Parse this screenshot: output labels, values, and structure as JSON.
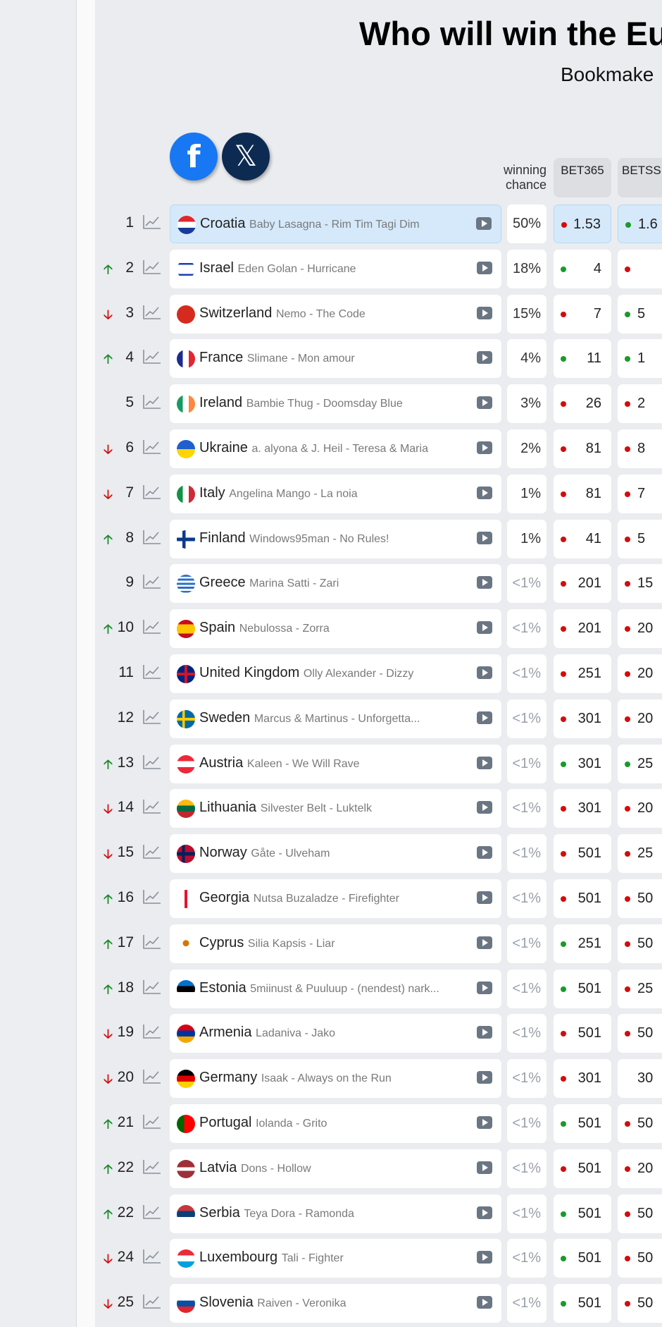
{
  "header": {
    "title": "Who will win the Eu",
    "subtitle": "Bookmake"
  },
  "social": [
    {
      "icon": "facebook-icon",
      "glyph": "f"
    },
    {
      "icon": "x-icon",
      "glyph": "𝕏"
    }
  ],
  "columns": {
    "chance": "winning chance",
    "bookmakers": [
      "BET365",
      "BETSS"
    ]
  },
  "colors": {
    "up": "#1a8a2a",
    "down": "#d01010",
    "odds_up": "#1a9a2a",
    "odds_down": "#d40c0c",
    "highlight": "#d5e9fb"
  },
  "rows": [
    {
      "rank": "1",
      "trend": "",
      "country": "Croatia",
      "artist": "Baby Lasagna - Rim Tim Tagi Dim",
      "flag": "croatia",
      "chance": "50%",
      "odds": [
        {
          "v": "1.53",
          "d": "red"
        },
        {
          "v": "1.6",
          "d": "green"
        }
      ]
    },
    {
      "rank": "2",
      "trend": "up",
      "country": "Israel",
      "artist": "Eden Golan - Hurricane",
      "flag": "israel",
      "chance": "18%",
      "odds": [
        {
          "v": "4",
          "d": "green"
        },
        {
          "v": "",
          "d": "red"
        }
      ]
    },
    {
      "rank": "3",
      "trend": "down",
      "country": "Switzerland",
      "artist": "Nemo - The Code",
      "flag": "switzerland",
      "chance": "15%",
      "odds": [
        {
          "v": "7",
          "d": "red"
        },
        {
          "v": "5",
          "d": "green"
        }
      ]
    },
    {
      "rank": "4",
      "trend": "up",
      "country": "France",
      "artist": "Slimane - Mon amour",
      "flag": "france",
      "chance": "4%",
      "odds": [
        {
          "v": "11",
          "d": "green"
        },
        {
          "v": "1",
          "d": "green"
        }
      ]
    },
    {
      "rank": "5",
      "trend": "",
      "country": "Ireland",
      "artist": "Bambie Thug - Doomsday Blue",
      "flag": "ireland",
      "chance": "3%",
      "odds": [
        {
          "v": "26",
          "d": "red"
        },
        {
          "v": "2",
          "d": "red"
        }
      ]
    },
    {
      "rank": "6",
      "trend": "down",
      "country": "Ukraine",
      "artist": "a. alyona & J. Heil - Teresa & Maria",
      "flag": "ukraine",
      "chance": "2%",
      "odds": [
        {
          "v": "81",
          "d": "red"
        },
        {
          "v": "8",
          "d": "red"
        }
      ]
    },
    {
      "rank": "7",
      "trend": "down",
      "country": "Italy",
      "artist": "Angelina Mango - La noia",
      "flag": "italy",
      "chance": "1%",
      "odds": [
        {
          "v": "81",
          "d": "red"
        },
        {
          "v": "7",
          "d": "red"
        }
      ]
    },
    {
      "rank": "8",
      "trend": "up",
      "country": "Finland",
      "artist": "Windows95man - No Rules!",
      "flag": "finland",
      "chance": "1%",
      "odds": [
        {
          "v": "41",
          "d": "red"
        },
        {
          "v": "5",
          "d": "red"
        }
      ]
    },
    {
      "rank": "9",
      "trend": "",
      "country": "Greece",
      "artist": "Marina Satti - Zari",
      "flag": "greece",
      "chance": "<1%",
      "odds": [
        {
          "v": "201",
          "d": "red"
        },
        {
          "v": "15",
          "d": "red"
        }
      ]
    },
    {
      "rank": "10",
      "trend": "up",
      "country": "Spain",
      "artist": "Nebulossa - Zorra",
      "flag": "spain",
      "chance": "<1%",
      "odds": [
        {
          "v": "201",
          "d": "red"
        },
        {
          "v": "20",
          "d": "red"
        }
      ]
    },
    {
      "rank": "11",
      "trend": "",
      "country": "United Kingdom",
      "artist": "Olly Alexander - Dizzy",
      "flag": "uk",
      "chance": "<1%",
      "odds": [
        {
          "v": "251",
          "d": "red"
        },
        {
          "v": "20",
          "d": "red"
        }
      ]
    },
    {
      "rank": "12",
      "trend": "",
      "country": "Sweden",
      "artist": "Marcus & Martinus - Unforgetta...",
      "flag": "sweden",
      "chance": "<1%",
      "odds": [
        {
          "v": "301",
          "d": "red"
        },
        {
          "v": "20",
          "d": "red"
        }
      ]
    },
    {
      "rank": "13",
      "trend": "up",
      "country": "Austria",
      "artist": "Kaleen - We Will Rave",
      "flag": "austria",
      "chance": "<1%",
      "odds": [
        {
          "v": "301",
          "d": "green"
        },
        {
          "v": "25",
          "d": "green"
        }
      ]
    },
    {
      "rank": "14",
      "trend": "down",
      "country": "Lithuania",
      "artist": "Silvester Belt - Luktelk",
      "flag": "lithuania",
      "chance": "<1%",
      "odds": [
        {
          "v": "301",
          "d": "red"
        },
        {
          "v": "20",
          "d": "red"
        }
      ]
    },
    {
      "rank": "15",
      "trend": "down",
      "country": "Norway",
      "artist": "Gåte - Ulveham",
      "flag": "norway",
      "chance": "<1%",
      "odds": [
        {
          "v": "501",
          "d": "red"
        },
        {
          "v": "25",
          "d": "red"
        }
      ]
    },
    {
      "rank": "16",
      "trend": "up",
      "country": "Georgia",
      "artist": "Nutsa Buzaladze - Firefighter",
      "flag": "georgia",
      "chance": "<1%",
      "odds": [
        {
          "v": "501",
          "d": "red"
        },
        {
          "v": "50",
          "d": "red"
        }
      ]
    },
    {
      "rank": "17",
      "trend": "up",
      "country": "Cyprus",
      "artist": "Silia Kapsis - Liar",
      "flag": "cyprus",
      "chance": "<1%",
      "odds": [
        {
          "v": "251",
          "d": "green"
        },
        {
          "v": "50",
          "d": "red"
        }
      ]
    },
    {
      "rank": "18",
      "trend": "up",
      "country": "Estonia",
      "artist": "5miinust & Puuluup - (nendest) nark...",
      "flag": "estonia",
      "chance": "<1%",
      "odds": [
        {
          "v": "501",
          "d": "green"
        },
        {
          "v": "25",
          "d": "red"
        }
      ]
    },
    {
      "rank": "19",
      "trend": "down",
      "country": "Armenia",
      "artist": "Ladaniva - Jako",
      "flag": "armenia",
      "chance": "<1%",
      "odds": [
        {
          "v": "501",
          "d": "red"
        },
        {
          "v": "50",
          "d": "red"
        }
      ]
    },
    {
      "rank": "20",
      "trend": "down",
      "country": "Germany",
      "artist": "Isaak - Always on the Run",
      "flag": "germany",
      "chance": "<1%",
      "odds": [
        {
          "v": "301",
          "d": "red"
        },
        {
          "v": "30",
          "d": ""
        }
      ]
    },
    {
      "rank": "21",
      "trend": "up",
      "country": "Portugal",
      "artist": "Iolanda - Grito",
      "flag": "portugal",
      "chance": "<1%",
      "odds": [
        {
          "v": "501",
          "d": "green"
        },
        {
          "v": "50",
          "d": "red"
        }
      ]
    },
    {
      "rank": "22",
      "trend": "up",
      "country": "Latvia",
      "artist": "Dons - Hollow",
      "flag": "latvia",
      "chance": "<1%",
      "odds": [
        {
          "v": "501",
          "d": "red"
        },
        {
          "v": "20",
          "d": "red"
        }
      ]
    },
    {
      "rank": "22",
      "trend": "up",
      "country": "Serbia",
      "artist": "Teya Dora - Ramonda",
      "flag": "serbia",
      "chance": "<1%",
      "odds": [
        {
          "v": "501",
          "d": "green"
        },
        {
          "v": "50",
          "d": "red"
        }
      ]
    },
    {
      "rank": "24",
      "trend": "down",
      "country": "Luxembourg",
      "artist": "Tali - Fighter",
      "flag": "luxembourg",
      "chance": "<1%",
      "odds": [
        {
          "v": "501",
          "d": "green"
        },
        {
          "v": "50",
          "d": "red"
        }
      ]
    },
    {
      "rank": "25",
      "trend": "down",
      "country": "Slovenia",
      "artist": "Raiven - Veronika",
      "flag": "slovenia",
      "chance": "<1%",
      "odds": [
        {
          "v": "501",
          "d": "green"
        },
        {
          "v": "50",
          "d": "red"
        }
      ]
    }
  ]
}
